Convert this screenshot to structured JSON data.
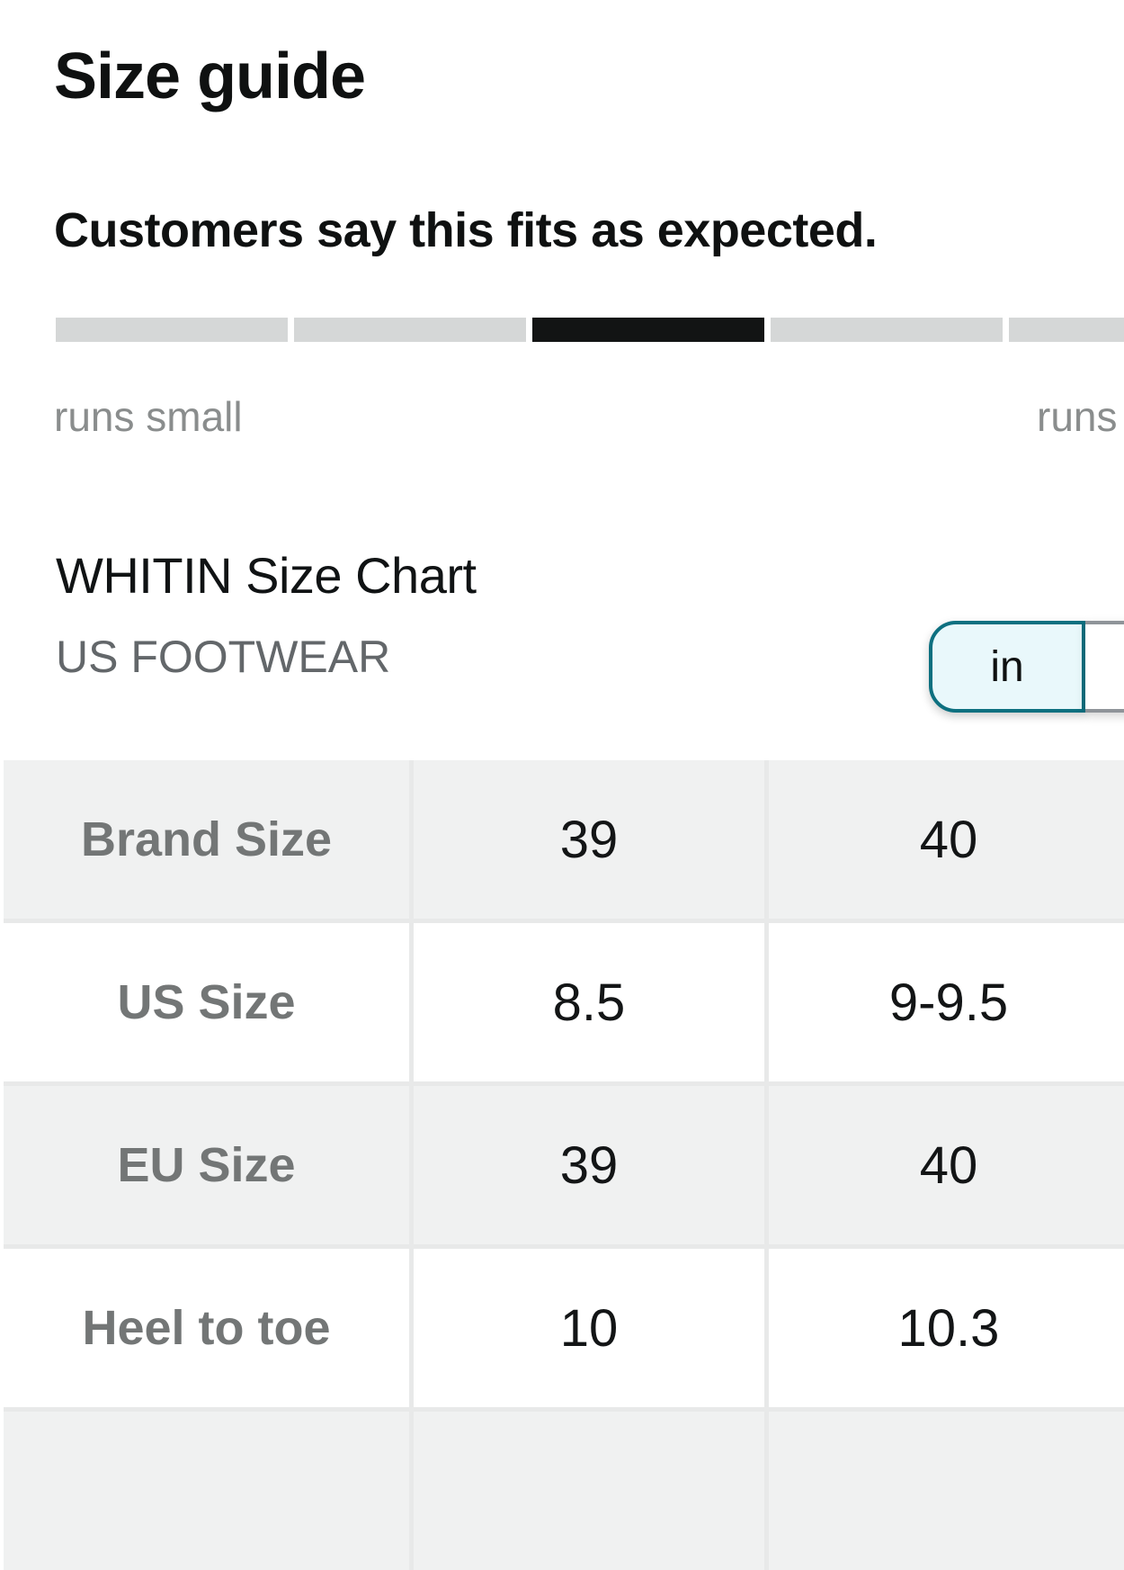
{
  "header": {
    "title": "Size guide"
  },
  "fit": {
    "summary": "Customers say this fits as expected.",
    "scale": {
      "segments": 5,
      "active_index": 2,
      "active_color": "#121414",
      "inactive_color": "#d5d7d7"
    },
    "left_label": "runs small",
    "right_label": "runs"
  },
  "size_chart": {
    "title": "WHITIN Size Chart",
    "subtitle": "US FOOTWEAR",
    "unit_toggle": {
      "selected_option": "in",
      "accent_color": "#0d7080",
      "selected_bg": "#e9f8fb",
      "options": [
        {
          "label": "in",
          "selected": true
        },
        {
          "label": "",
          "selected": false
        }
      ]
    },
    "table": {
      "shade_color": "#f0f1f1",
      "grid_line_color": "#e8e9e9",
      "rows": [
        {
          "label": "Brand Size",
          "values": [
            "39",
            "40"
          ]
        },
        {
          "label": "US Size",
          "values": [
            "8.5",
            "9-9.5"
          ]
        },
        {
          "label": "EU Size",
          "values": [
            "39",
            "40"
          ]
        },
        {
          "label": "Heel to toe",
          "values": [
            "10",
            "10.3"
          ]
        },
        {
          "label": "",
          "values": [
            "",
            ""
          ]
        }
      ]
    }
  }
}
